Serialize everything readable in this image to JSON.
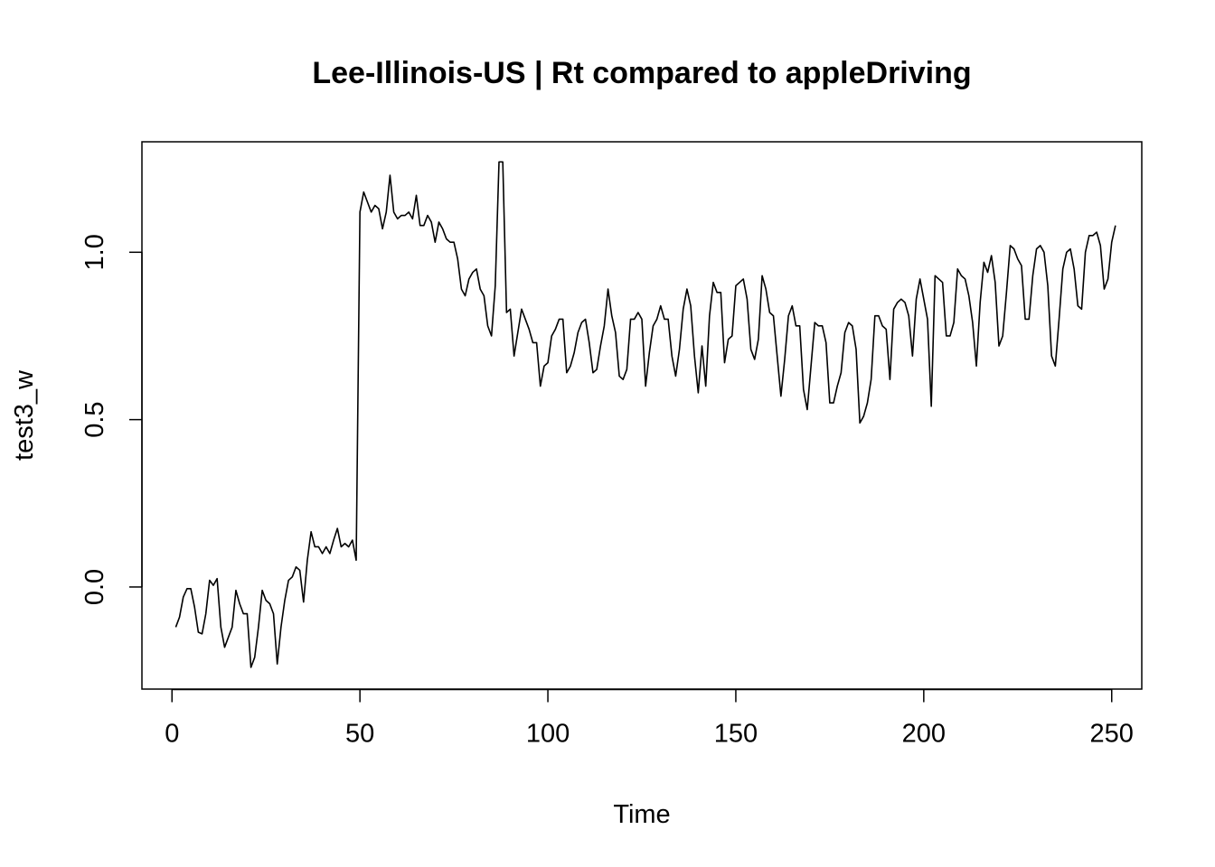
{
  "chart_data": {
    "type": "line",
    "title": "Lee-Illinois-US | Rt compared to appleDriving",
    "xlabel": "Time",
    "ylabel": "test3_w",
    "xlim": [
      -8,
      258
    ],
    "ylim": [
      -0.305,
      1.33
    ],
    "xticks": [
      0,
      50,
      100,
      150,
      200,
      250
    ],
    "xtick_labels": [
      "0",
      "50",
      "100",
      "150",
      "200",
      "250"
    ],
    "yticks": [
      0.0,
      0.5,
      1.0
    ],
    "ytick_labels": [
      "0.0",
      "0.5",
      "1.0"
    ],
    "grid": false,
    "line_color": "#000000",
    "x_start": 1,
    "values": [
      -0.12,
      -0.09,
      -0.03,
      -0.005,
      -0.005,
      -0.06,
      -0.135,
      -0.14,
      -0.08,
      0.02,
      0.005,
      0.025,
      -0.12,
      -0.18,
      -0.15,
      -0.12,
      -0.01,
      -0.05,
      -0.08,
      -0.08,
      -0.24,
      -0.21,
      -0.12,
      -0.01,
      -0.04,
      -0.05,
      -0.08,
      -0.23,
      -0.12,
      -0.04,
      0.02,
      0.03,
      0.06,
      0.05,
      -0.045,
      0.08,
      0.165,
      0.12,
      0.12,
      0.1,
      0.12,
      0.1,
      0.14,
      0.175,
      0.12,
      0.13,
      0.12,
      0.14,
      0.08,
      1.12,
      1.18,
      1.15,
      1.12,
      1.14,
      1.13,
      1.07,
      1.12,
      1.23,
      1.12,
      1.1,
      1.11,
      1.11,
      1.12,
      1.1,
      1.17,
      1.08,
      1.08,
      1.11,
      1.09,
      1.03,
      1.09,
      1.07,
      1.04,
      1.03,
      1.03,
      0.98,
      0.89,
      0.87,
      0.92,
      0.94,
      0.95,
      0.89,
      0.87,
      0.78,
      0.75,
      0.9,
      1.27,
      1.27,
      0.82,
      0.83,
      0.69,
      0.76,
      0.83,
      0.8,
      0.77,
      0.73,
      0.73,
      0.6,
      0.66,
      0.67,
      0.75,
      0.77,
      0.8,
      0.8,
      0.64,
      0.66,
      0.7,
      0.76,
      0.79,
      0.8,
      0.73,
      0.64,
      0.65,
      0.72,
      0.78,
      0.89,
      0.81,
      0.76,
      0.63,
      0.62,
      0.65,
      0.8,
      0.8,
      0.82,
      0.8,
      0.6,
      0.7,
      0.78,
      0.8,
      0.84,
      0.8,
      0.8,
      0.69,
      0.63,
      0.71,
      0.83,
      0.89,
      0.84,
      0.69,
      0.58,
      0.72,
      0.6,
      0.81,
      0.91,
      0.88,
      0.88,
      0.67,
      0.74,
      0.75,
      0.9,
      0.91,
      0.92,
      0.86,
      0.71,
      0.68,
      0.74,
      0.93,
      0.89,
      0.82,
      0.81,
      0.69,
      0.57,
      0.68,
      0.81,
      0.84,
      0.78,
      0.78,
      0.59,
      0.53,
      0.66,
      0.79,
      0.78,
      0.78,
      0.73,
      0.55,
      0.55,
      0.6,
      0.64,
      0.76,
      0.79,
      0.78,
      0.71,
      0.49,
      0.51,
      0.55,
      0.62,
      0.81,
      0.81,
      0.78,
      0.77,
      0.62,
      0.83,
      0.85,
      0.86,
      0.85,
      0.81,
      0.69,
      0.86,
      0.92,
      0.86,
      0.8,
      0.54,
      0.93,
      0.92,
      0.91,
      0.75,
      0.75,
      0.79,
      0.95,
      0.93,
      0.92,
      0.87,
      0.79,
      0.66,
      0.85,
      0.97,
      0.94,
      0.99,
      0.91,
      0.72,
      0.75,
      0.88,
      1.02,
      1.01,
      0.98,
      0.96,
      0.8,
      0.8,
      0.93,
      1.01,
      1.02,
      1.0,
      0.9,
      0.69,
      0.66,
      0.8,
      0.95,
      1.0,
      1.01,
      0.95,
      0.84,
      0.83,
      1.0,
      1.05,
      1.05,
      1.06,
      1.02,
      0.89,
      0.92,
      1.03,
      1.08
    ]
  }
}
